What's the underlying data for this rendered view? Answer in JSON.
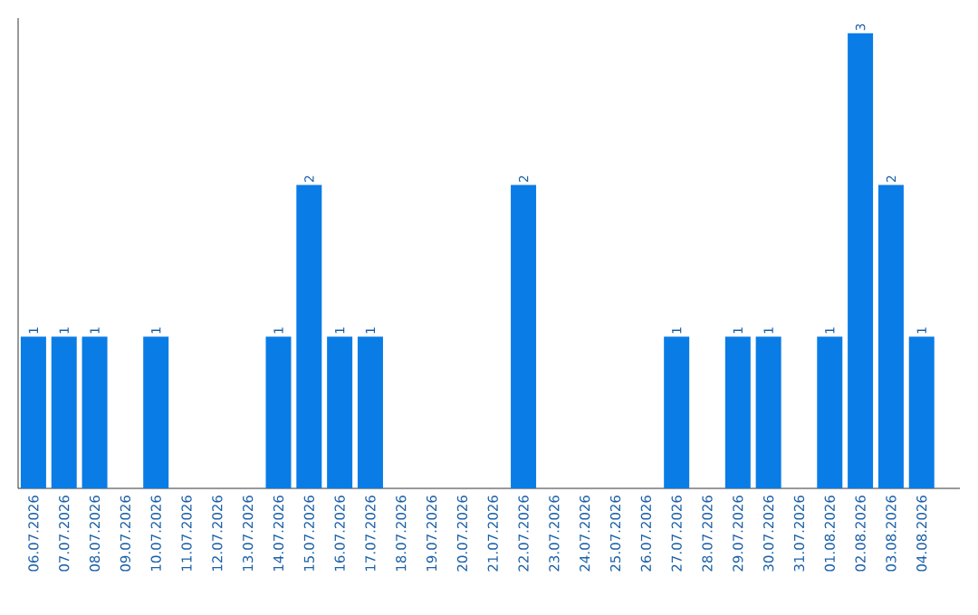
{
  "chart_data": {
    "type": "bar",
    "categories": [
      "06.07.2026",
      "07.07.2026",
      "08.07.2026",
      "09.07.2026",
      "10.07.2026",
      "11.07.2026",
      "12.07.2026",
      "13.07.2026",
      "14.07.2026",
      "15.07.2026",
      "16.07.2026",
      "17.07.2026",
      "18.07.2026",
      "19.07.2026",
      "20.07.2026",
      "21.07.2026",
      "22.07.2026",
      "23.07.2026",
      "24.07.2026",
      "25.07.2026",
      "26.07.2026",
      "27.07.2026",
      "28.07.2026",
      "29.07.2026",
      "30.07.2026",
      "31.07.2026",
      "01.08.2026",
      "02.08.2026",
      "03.08.2026",
      "04.08.2026"
    ],
    "values": [
      1,
      1,
      1,
      0,
      1,
      0,
      0,
      0,
      1,
      2,
      1,
      1,
      0,
      0,
      0,
      0,
      2,
      0,
      0,
      0,
      0,
      1,
      0,
      1,
      1,
      0,
      1,
      3,
      2,
      1
    ],
    "value_labels": [
      "1",
      "1",
      "1",
      null,
      "1",
      null,
      null,
      null,
      "1",
      "2",
      "1",
      "1",
      null,
      null,
      null,
      null,
      "2",
      null,
      null,
      null,
      null,
      "1",
      null,
      "1",
      "1",
      null,
      "1",
      "3",
      "2",
      "1"
    ],
    "color": "#0a7ce6",
    "ylim": [
      0,
      3.1
    ]
  }
}
